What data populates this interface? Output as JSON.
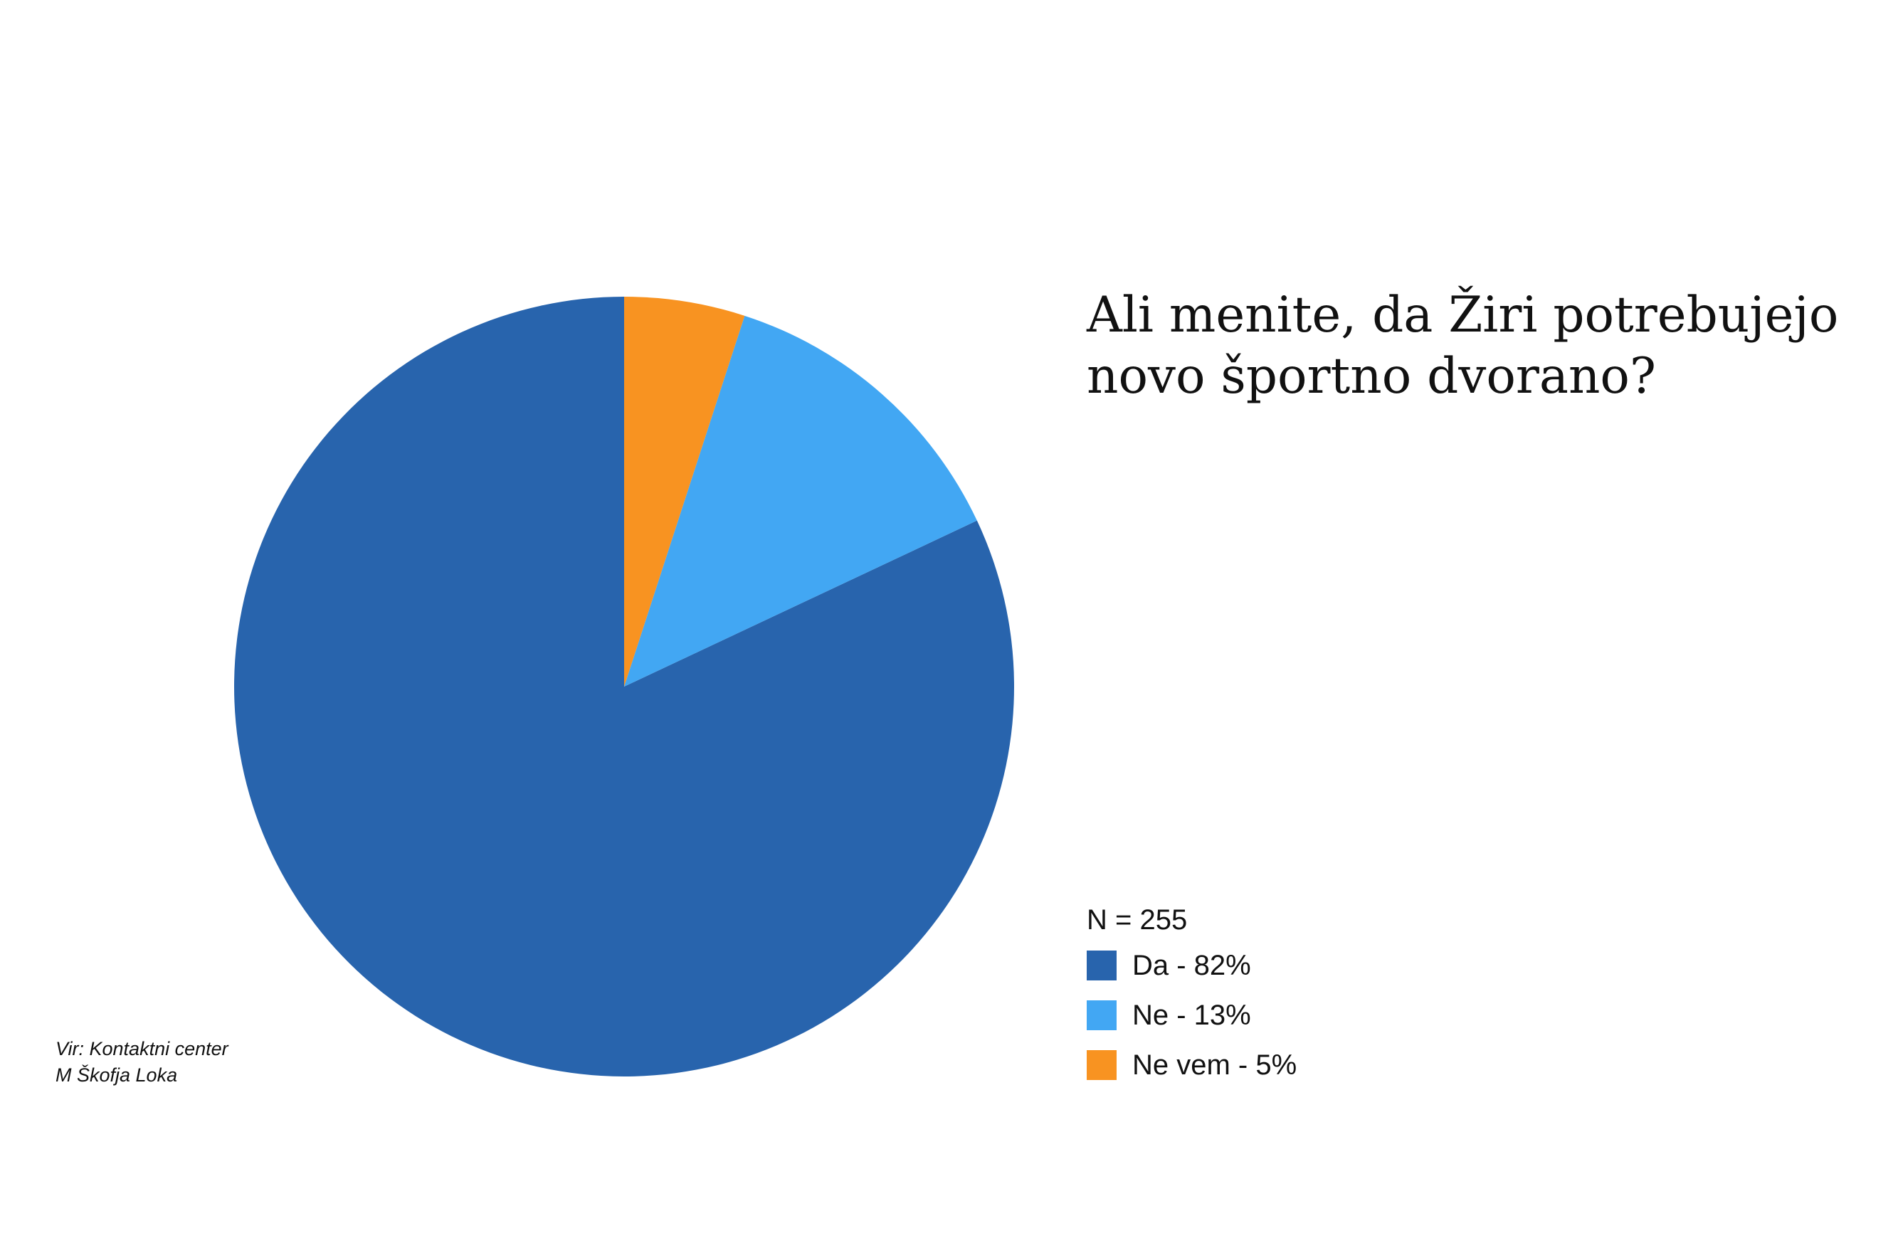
{
  "chart_data": {
    "type": "pie",
    "title": [
      "Ali menite, da Žiri potrebujejo",
      "novo športno dvorano?"
    ],
    "note": "N = 255",
    "slices": [
      {
        "label": "Da - 82%",
        "value": 82,
        "color": "#2864ad"
      },
      {
        "label": "Ne - 13%",
        "value": 13,
        "color": "#42a7f3"
      },
      {
        "label": "Ne vem - 5%",
        "value": 5,
        "color": "#f89321"
      }
    ],
    "legend_position": "bottom-right"
  },
  "source": [
    "Vir: Kontaktni center",
    "M Škofja Loka"
  ]
}
